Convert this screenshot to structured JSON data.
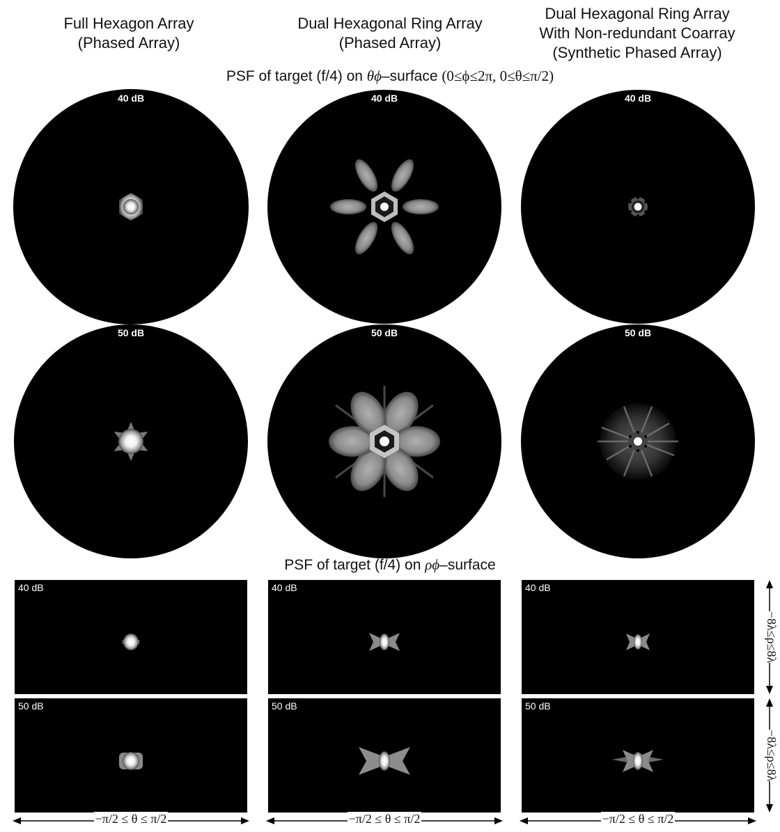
{
  "columns": [
    {
      "title_lines": [
        "Full Hexagon Array",
        "(Phased Array)"
      ]
    },
    {
      "title_lines": [
        "Dual Hexagonal Ring Array",
        "(Phased Array)"
      ]
    },
    {
      "title_lines": [
        "Dual Hexagonal Ring Array",
        "With Non-redundant Coarray",
        "(Synthetic Phased Array)"
      ]
    }
  ],
  "theta_phi_section": {
    "title_prefix": "PSF of target (f/4) on ",
    "title_math": "θϕ",
    "title_suffix": "–surface ",
    "title_range": "(0≤ϕ≤2π, 0≤θ≤π/2)",
    "rows": [
      {
        "db_label": "40 dB"
      },
      {
        "db_label": "50 dB"
      }
    ]
  },
  "rho_phi_section": {
    "title_prefix": "PSF of target (f/4) on ",
    "title_math": "ρϕ",
    "title_suffix": "–surface",
    "rows": [
      {
        "db_label": "40 dB"
      },
      {
        "db_label": "50 dB"
      }
    ]
  },
  "axes": {
    "bottom_label": "−π/2 ≤ θ ≤ π/2",
    "right_label": "−8λ≤ρ≤8λ"
  },
  "colors": {
    "background": "#000000",
    "psf": "#ffffff",
    "page": "#ffffff"
  }
}
